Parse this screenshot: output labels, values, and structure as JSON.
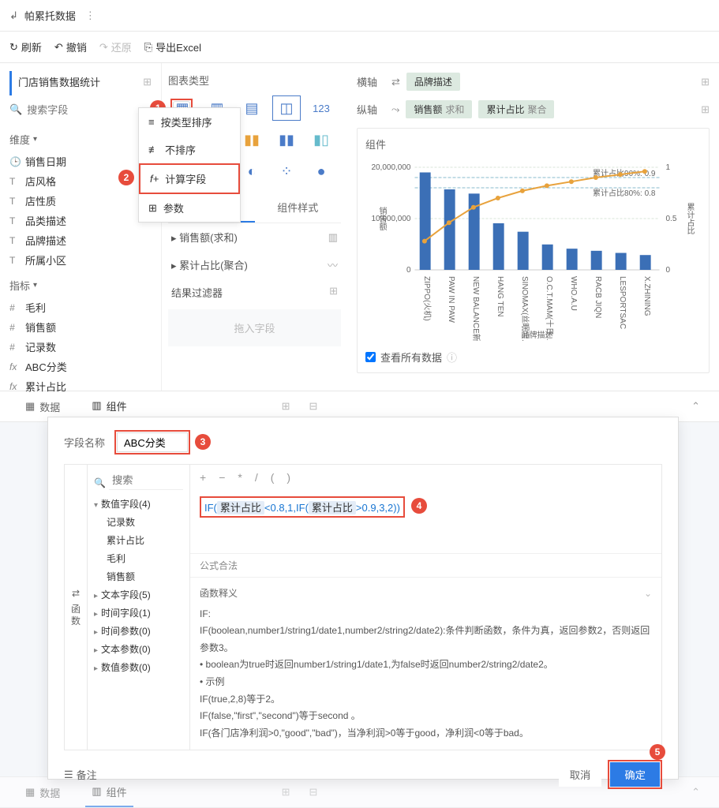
{
  "topbar": {
    "title": "帕累托数据"
  },
  "toolbar": {
    "refresh": "刷新",
    "undo": "撤销",
    "redo": "还原",
    "export": "导出Excel"
  },
  "sidebar": {
    "title": "门店销售数据统计",
    "search_ph": "搜索字段",
    "dim_label": "维度",
    "metric_label": "指标",
    "dims": [
      "销售日期",
      "店风格",
      "店性质",
      "品类描述",
      "品牌描述",
      "所属小区"
    ],
    "dim_icons": [
      "🕒",
      "T",
      "T",
      "T",
      "T",
      "T"
    ],
    "metrics": [
      "毛利",
      "销售额",
      "记录数",
      "ABC分类",
      "累计占比"
    ],
    "metric_icons": [
      "#",
      "#",
      "#",
      "fx",
      "fx"
    ]
  },
  "dropdown": {
    "items": [
      "按类型排序",
      "不排序",
      "计算字段",
      "参数"
    ]
  },
  "mid": {
    "title": "图表类型",
    "prop_tabs": [
      "图形属性",
      "组件样式"
    ],
    "prop_rows": [
      "销售额(求和)",
      "累计占比(聚合)"
    ],
    "filter_title": "结果过滤器",
    "drop_hint": "拖入字段"
  },
  "right": {
    "h_axis": "横轴",
    "v_axis": "纵轴",
    "h_pill": "品牌描述",
    "v_pill1": "销售额",
    "v_pill1_sub": "求和",
    "v_pill2": "累计占比",
    "v_pill2_sub": "聚合",
    "chart_title": "组件",
    "y_label": "销售额",
    "y2_label": "累计占比",
    "x_label": "品牌描述",
    "view_all": "查看所有数据",
    "annot1": "累计占比90%: 0.9",
    "annot2": "累计占比80%: 0.8",
    "y_ticks": [
      "20,000,000",
      "10,000,000",
      "0"
    ],
    "y2_ticks": [
      "1",
      "0.5",
      "0"
    ],
    "categories": [
      "ZIPPO(火机)",
      "PAW IN PAW",
      "NEW BALANCE新…",
      "HANG TEN",
      "SINOMAX(丝眠宝…",
      "O.C.T.MAM(十日…",
      "WHO.A.U",
      "RACB JIQN",
      "LESPORTSAC",
      "X.ZHINING"
    ],
    "bars": [
      230,
      190,
      180,
      110,
      90,
      60,
      50,
      45,
      40,
      35
    ],
    "line": [
      0.28,
      0.46,
      0.61,
      0.7,
      0.77,
      0.82,
      0.86,
      0.9,
      0.93,
      0.96
    ],
    "bar_color": "#3b6fb6",
    "line_color": "#e8a23c",
    "grid_color": "#d8e4d8"
  },
  "btm": {
    "tab1": "数据",
    "tab2": "组件"
  },
  "modal": {
    "name_label": "字段名称",
    "name_value": "ABC分类",
    "left_tab": "函数",
    "tree_search_ph": "搜索",
    "tree": {
      "num_fields": "数值字段(4)",
      "num_children": [
        "记录数",
        "累计占比",
        "毛利",
        "销售额"
      ],
      "text_fields": "文本字段(5)",
      "time_fields": "时间字段(1)",
      "time_params": "时间参数(0)",
      "text_params": "文本参数(0)",
      "num_params": "数值参数(0)"
    },
    "ops": [
      "+",
      "−",
      "*",
      "/",
      "(",
      ")"
    ],
    "formula_pre": "IF(",
    "formula_f1": "累计占比",
    "formula_mid1": "<0.8,1,IF(",
    "formula_f2": "累计占比",
    "formula_mid2": ">0.9,3,2))",
    "valid_label": "公式合法",
    "help_title": "函数释义",
    "help_body": "IF:\nIF(boolean,number1/string1/date1,number2/string2/date2):条件判断函数，条件为真，返回参数2，否则返回参数3。\n• boolean为true时返回number1/string1/date1,为false时返回number2/string2/date2。\n• 示例\nIF(true,2,8)等于2。\nIF(false,\"first\",\"second\")等于second 。\nIF(各门店净利润>0,\"good\",\"bad\")，当净利润>0等于good，净利润<0等于bad。",
    "remark": "备注",
    "cancel": "取消",
    "ok": "确定"
  },
  "callouts": {
    "c1": "1",
    "c2": "2",
    "c3": "3",
    "c4": "4",
    "c5": "5"
  }
}
